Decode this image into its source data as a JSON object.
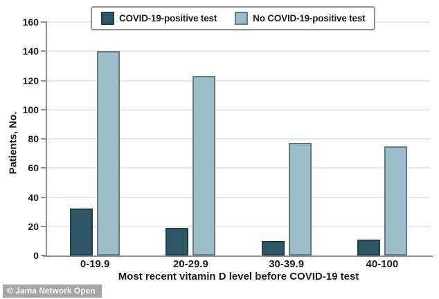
{
  "watermark": "© Jama Network Open",
  "colors": {
    "bar_positive": "#2d5566",
    "bar_positive_border": "#1e3d4a",
    "bar_negative": "#9cbecb",
    "bar_negative_border": "#637984",
    "axis_line": "#8a8f93",
    "gridline": "#e7e7e7",
    "text": "#1c1c1c",
    "legend_border": "#8f9496",
    "watermark_bg": "#a5a5a5",
    "watermark_text": "#ffffff"
  },
  "chart_data": {
    "type": "bar",
    "title": "",
    "categories": [
      "0-19.9",
      "20-29.9",
      "30-39.9",
      "40-100"
    ],
    "series": [
      {
        "name": "COVID-19-positive test",
        "values": [
          32,
          19,
          10,
          11
        ]
      },
      {
        "name": "No COVID-19-positive test",
        "values": [
          140,
          123,
          77,
          75
        ]
      }
    ],
    "xlabel": "Most recent vitamin D level before COVID-19 test",
    "ylabel": "Patients, No.",
    "ylim": [
      0,
      160
    ],
    "ytick_step": 20,
    "grid": true,
    "legend_position": "top"
  }
}
